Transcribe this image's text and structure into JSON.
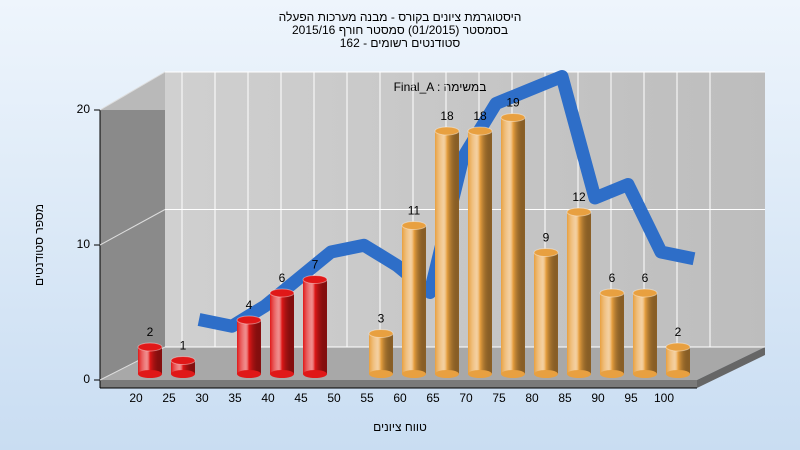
{
  "chart_data": {
    "type": "bar",
    "title": [
      "היסטוגרמת ציונים בקורס - מבנה מערכות הפעלה",
      "בסמסטר (01/2015) סמסטר חורף 2015/16",
      "162 - סטודנטים רשומים"
    ],
    "x_label": "טווח ציונים",
    "y_label": "מספר סטודנטים",
    "categories": [
      "20",
      "25",
      "30",
      "35",
      "40",
      "45",
      "50",
      "55",
      "60",
      "65",
      "70",
      "75",
      "80",
      "85",
      "90",
      "95",
      "100"
    ],
    "values": [
      2,
      1,
      null,
      4,
      6,
      7,
      null,
      3,
      11,
      18,
      18,
      19,
      9,
      12,
      6,
      6,
      2
    ],
    "colors": [
      "#e01818",
      "#e01818",
      "#e01818",
      "#e01818",
      "#e01818",
      "#e01818",
      "#e01818",
      "#e8a040",
      "#e8a040",
      "#e8a040",
      "#e8a040",
      "#e8a040",
      "#e8a040",
      "#e8a040",
      "#e8a040",
      "#e8a040",
      "#e8a040"
    ],
    "line": {
      "name": "Final_A : במשימה",
      "color": "#2e6ec8",
      "values": [
        null,
        3,
        2.5,
        4,
        6,
        8,
        8.5,
        7,
        5,
        15,
        19,
        20,
        21,
        12,
        13,
        8,
        7.5
      ]
    },
    "ylim": [
      0,
      20
    ],
    "yticks": [
      0,
      10,
      20
    ],
    "grid": true
  }
}
